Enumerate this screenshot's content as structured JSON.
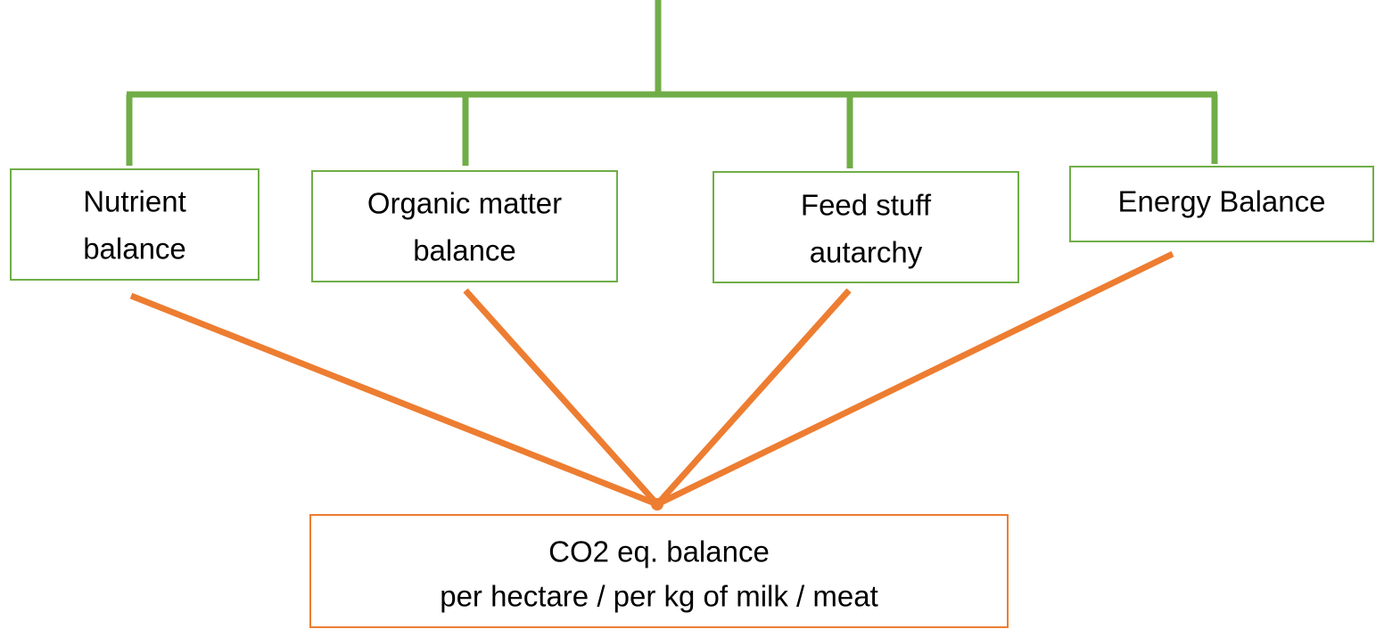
{
  "nodes": [
    {
      "lines": [
        "Nutrient",
        "balance"
      ]
    },
    {
      "lines": [
        "Organic matter",
        "balance"
      ]
    },
    {
      "lines": [
        "Feed stuff",
        "autarchy"
      ]
    },
    {
      "lines": [
        "Energy Balance"
      ]
    }
  ],
  "result": {
    "lines": [
      "CO2 eq. balance",
      "per hectare / per kg of milk / meat"
    ]
  }
}
